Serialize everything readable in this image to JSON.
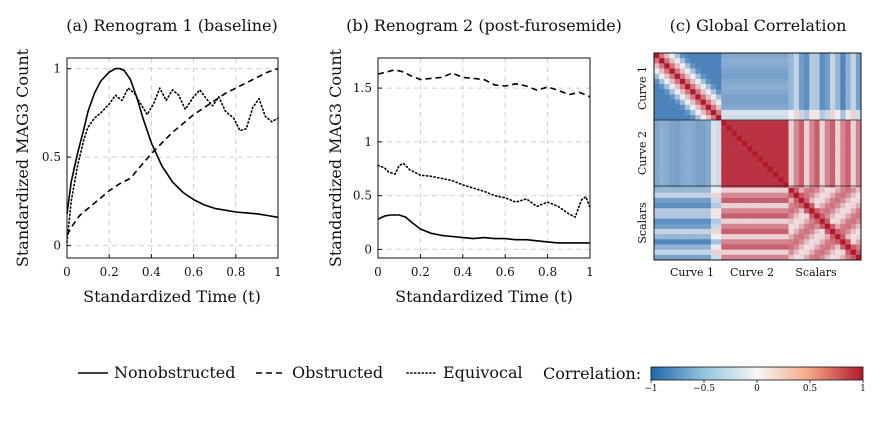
{
  "chart_data": [
    {
      "type": "line",
      "title": "(a) Renogram 1 (baseline)",
      "xlabel": "Standardized Time (t)",
      "ylabel": "Standardized MAG3 Count",
      "xlim": [
        0,
        1
      ],
      "ylim": [
        -0.07,
        1.06
      ],
      "xticks": [
        "0",
        "0.2",
        "0.4",
        "0.6",
        "0.8",
        "1"
      ],
      "yticks": [
        "0",
        "0.5",
        "1"
      ],
      "xtick_values": [
        0,
        0.2,
        0.4,
        0.6,
        0.8,
        1
      ],
      "ytick_values": [
        0,
        0.5,
        1
      ],
      "grid": true,
      "series": [
        {
          "name": "Nonobstructed",
          "style": "solid",
          "x": [
            0,
            0.02,
            0.05,
            0.08,
            0.1,
            0.13,
            0.16,
            0.2,
            0.23,
            0.25,
            0.27,
            0.3,
            0.33,
            0.36,
            0.4,
            0.45,
            0.5,
            0.55,
            0.6,
            0.65,
            0.7,
            0.75,
            0.8,
            0.85,
            0.9,
            0.95,
            1.0
          ],
          "y": [
            0.18,
            0.36,
            0.52,
            0.66,
            0.76,
            0.86,
            0.93,
            0.98,
            1.0,
            1.0,
            0.99,
            0.94,
            0.84,
            0.72,
            0.58,
            0.45,
            0.36,
            0.3,
            0.26,
            0.23,
            0.21,
            0.2,
            0.19,
            0.185,
            0.18,
            0.17,
            0.16
          ]
        },
        {
          "name": "Obstructed",
          "style": "dashed",
          "x": [
            0,
            0.03,
            0.06,
            0.1,
            0.15,
            0.2,
            0.25,
            0.3,
            0.35,
            0.4,
            0.45,
            0.5,
            0.55,
            0.6,
            0.65,
            0.7,
            0.75,
            0.8,
            0.85,
            0.9,
            0.95,
            1.0
          ],
          "y": [
            0.06,
            0.12,
            0.17,
            0.21,
            0.26,
            0.31,
            0.35,
            0.38,
            0.45,
            0.52,
            0.58,
            0.64,
            0.69,
            0.74,
            0.78,
            0.82,
            0.86,
            0.89,
            0.92,
            0.95,
            0.98,
            1.0
          ]
        },
        {
          "name": "Equivocal",
          "style": "dotted",
          "x": [
            0,
            0.02,
            0.05,
            0.08,
            0.1,
            0.13,
            0.16,
            0.2,
            0.23,
            0.26,
            0.29,
            0.32,
            0.35,
            0.38,
            0.41,
            0.44,
            0.47,
            0.5,
            0.53,
            0.56,
            0.6,
            0.63,
            0.66,
            0.69,
            0.72,
            0.75,
            0.79,
            0.82,
            0.85,
            0.88,
            0.91,
            0.94,
            0.97,
            1.0
          ],
          "y": [
            0.02,
            0.25,
            0.45,
            0.6,
            0.67,
            0.72,
            0.75,
            0.8,
            0.85,
            0.82,
            0.89,
            0.86,
            0.8,
            0.74,
            0.8,
            0.89,
            0.82,
            0.88,
            0.85,
            0.77,
            0.84,
            0.88,
            0.83,
            0.79,
            0.84,
            0.76,
            0.72,
            0.65,
            0.66,
            0.78,
            0.83,
            0.73,
            0.7,
            0.72
          ]
        }
      ]
    },
    {
      "type": "line",
      "title": "(b) Renogram 2 (post-furosemide)",
      "xlabel": "Standardized Time (t)",
      "ylabel": "Standardized MAG3 Count",
      "xlim": [
        0,
        1
      ],
      "ylim": [
        -0.08,
        1.78
      ],
      "xticks": [
        "0",
        "0.2",
        "0.4",
        "0.6",
        "0.8",
        "1"
      ],
      "yticks": [
        "0",
        "0.5",
        "1",
        "1.5"
      ],
      "xtick_values": [
        0,
        0.2,
        0.4,
        0.6,
        0.8,
        1
      ],
      "ytick_values": [
        0,
        0.5,
        1,
        1.5
      ],
      "grid": true,
      "series": [
        {
          "name": "Nonobstructed",
          "style": "solid",
          "x": [
            0,
            0.03,
            0.06,
            0.1,
            0.13,
            0.16,
            0.2,
            0.25,
            0.3,
            0.35,
            0.4,
            0.45,
            0.5,
            0.55,
            0.6,
            0.65,
            0.7,
            0.75,
            0.8,
            0.85,
            0.9,
            0.95,
            1.0
          ],
          "y": [
            0.28,
            0.31,
            0.32,
            0.32,
            0.3,
            0.25,
            0.19,
            0.15,
            0.13,
            0.12,
            0.11,
            0.1,
            0.11,
            0.1,
            0.1,
            0.09,
            0.09,
            0.08,
            0.07,
            0.06,
            0.06,
            0.06,
            0.06
          ]
        },
        {
          "name": "Obstructed",
          "style": "dashed",
          "x": [
            0,
            0.04,
            0.08,
            0.12,
            0.16,
            0.2,
            0.25,
            0.3,
            0.35,
            0.4,
            0.45,
            0.5,
            0.55,
            0.6,
            0.65,
            0.7,
            0.75,
            0.8,
            0.85,
            0.9,
            0.95,
            1.0
          ],
          "y": [
            1.63,
            1.65,
            1.67,
            1.65,
            1.61,
            1.58,
            1.59,
            1.6,
            1.64,
            1.6,
            1.59,
            1.58,
            1.53,
            1.52,
            1.54,
            1.52,
            1.48,
            1.51,
            1.48,
            1.44,
            1.46,
            1.42
          ]
        },
        {
          "name": "Equivocal",
          "style": "dotted",
          "x": [
            0,
            0.03,
            0.05,
            0.08,
            0.1,
            0.12,
            0.15,
            0.2,
            0.25,
            0.3,
            0.35,
            0.4,
            0.45,
            0.5,
            0.55,
            0.6,
            0.65,
            0.7,
            0.75,
            0.8,
            0.85,
            0.9,
            0.93,
            0.96,
            0.98,
            1.0
          ],
          "y": [
            0.78,
            0.76,
            0.72,
            0.7,
            0.78,
            0.8,
            0.74,
            0.69,
            0.68,
            0.66,
            0.64,
            0.6,
            0.57,
            0.54,
            0.5,
            0.48,
            0.44,
            0.47,
            0.4,
            0.44,
            0.4,
            0.33,
            0.3,
            0.46,
            0.49,
            0.39
          ]
        }
      ]
    },
    {
      "type": "heatmap",
      "title": "(c) Global Correlation",
      "row_labels": [
        "Curve 1",
        "Curve 2",
        "Scalars"
      ],
      "col_labels": [
        "Curve 1",
        "Curve 2",
        "Scalars"
      ],
      "colormap": {
        "min": -1,
        "max": 1,
        "low_color": "#2166ac",
        "mid_color": "#f7f7f7",
        "high_color": "#b2182b"
      },
      "grid_size": 40,
      "blocks": [
        {
          "rows": "Curve 1",
          "cols": "Curve 1",
          "pattern": "near-diagonal positive, off-diagonal negative"
        },
        {
          "rows": "Curve 1",
          "cols": "Curve 2",
          "pattern": "mostly negative"
        },
        {
          "rows": "Curve 1",
          "cols": "Scalars",
          "pattern": "mixed, mostly negative"
        },
        {
          "rows": "Curve 2",
          "cols": "Curve 2",
          "pattern": "strong positive"
        },
        {
          "rows": "Curve 2",
          "cols": "Scalars",
          "pattern": "moderate positive"
        },
        {
          "rows": "Scalars",
          "cols": "Scalars",
          "pattern": "positive with strong diagonal"
        }
      ],
      "colorbar": {
        "label": "Correlation:",
        "ticks": [
          "−1",
          "−0.5",
          "0",
          "0.5",
          "1"
        ],
        "tick_values": [
          -1,
          -0.5,
          0,
          0.5,
          1
        ]
      }
    }
  ],
  "legend": {
    "items": [
      {
        "label": "Nonobstructed",
        "style": "solid"
      },
      {
        "label": "Obstructed",
        "style": "dashed"
      },
      {
        "label": "Equivocal",
        "style": "dotted"
      }
    ]
  }
}
